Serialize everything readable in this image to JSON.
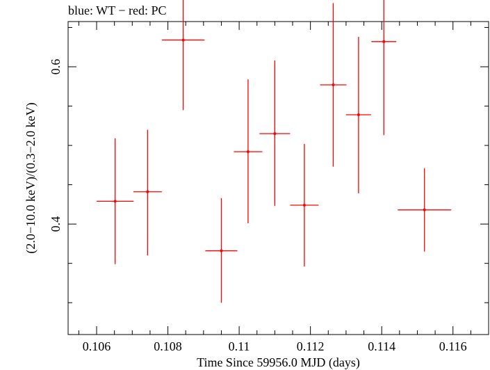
{
  "chart_data": {
    "type": "scatter",
    "title": "blue: WT − red: PC",
    "xlabel": "Time Since 59956.0 MJD (days)",
    "ylabel": "(2.0−10.0 keV)/(0.3−2.0 keV)",
    "xlim": [
      0.1052,
      0.117
    ],
    "ylim": [
      0.2595,
      0.6575
    ],
    "x_ticks": [
      0.106,
      0.108,
      0.11,
      0.112,
      0.114,
      0.116
    ],
    "x_tick_labels": [
      "0.106",
      "0.108",
      "0.11",
      "0.112",
      "0.114",
      "0.116"
    ],
    "y_ticks": [
      0.4,
      0.6
    ],
    "y_tick_labels": [
      "0.4",
      "0.6"
    ],
    "grid": false,
    "series": [
      {
        "color": "#ff0000",
        "points": [
          {
            "x": 0.10652,
            "y": 0.429,
            "xerr": 0.00052,
            "ylo": 0.349,
            "yhi": 0.509
          },
          {
            "x": 0.10743,
            "y": 0.441,
            "xerr": 0.0004,
            "ylo": 0.36,
            "yhi": 0.52
          },
          {
            "x": 0.10843,
            "y": 0.634,
            "xerr": 0.0006,
            "ylo": 0.545,
            "yhi": 0.723
          },
          {
            "x": 0.1095,
            "y": 0.366,
            "xerr": 0.00045,
            "ylo": 0.3,
            "yhi": 0.433
          },
          {
            "x": 0.11025,
            "y": 0.492,
            "xerr": 0.0004,
            "ylo": 0.401,
            "yhi": 0.584
          },
          {
            "x": 0.111,
            "y": 0.515,
            "xerr": 0.00043,
            "ylo": 0.423,
            "yhi": 0.608
          },
          {
            "x": 0.11183,
            "y": 0.424,
            "xerr": 0.0004,
            "ylo": 0.346,
            "yhi": 0.502
          },
          {
            "x": 0.11264,
            "y": 0.577,
            "xerr": 0.00037,
            "ylo": 0.473,
            "yhi": 0.681
          },
          {
            "x": 0.11335,
            "y": 0.539,
            "xerr": 0.00035,
            "ylo": 0.439,
            "yhi": 0.638
          },
          {
            "x": 0.11406,
            "y": 0.632,
            "xerr": 0.00035,
            "ylo": 0.513,
            "yhi": 0.75
          },
          {
            "x": 0.1152,
            "y": 0.418,
            "xerr": 0.00075,
            "ylo": 0.365,
            "yhi": 0.471
          }
        ]
      }
    ]
  }
}
